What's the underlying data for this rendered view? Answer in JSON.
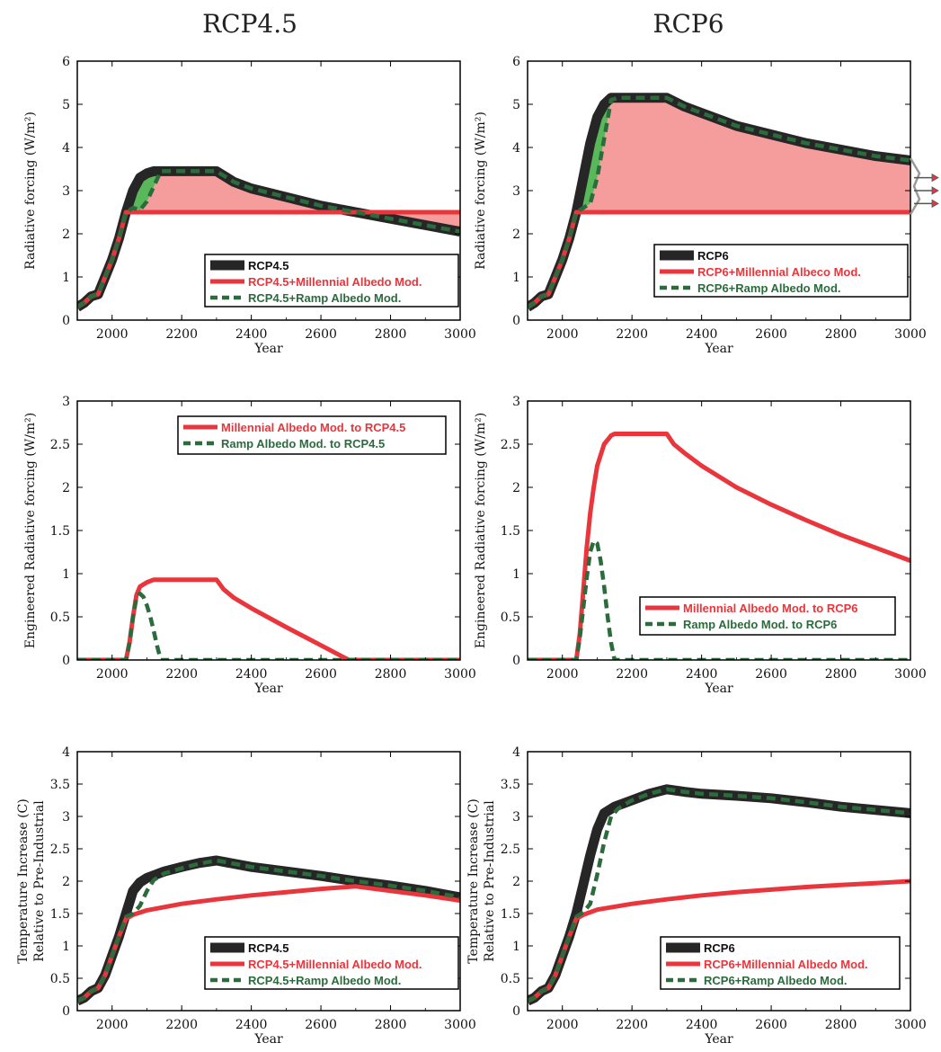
{
  "column_titles": [
    "RCP4.5",
    "RCP6"
  ],
  "colors": {
    "black": "#262626",
    "red": "#e8363c",
    "green": "#2b6b3c",
    "fill_red": "#f59d9d",
    "fill_green": "#58b85a"
  },
  "chart_data": [
    {
      "type": "line",
      "xlabel": "Year",
      "ylabel": "Radiative forcing (W/m²)",
      "xlim": [
        1900,
        3000
      ],
      "ylim": [
        0,
        6
      ],
      "xticks": [
        "2000",
        "2200",
        "2400",
        "2600",
        "2800",
        "3000"
      ],
      "yticks": [
        "0",
        "1",
        "2",
        "3",
        "4",
        "5",
        "6"
      ],
      "legend_placement": "bottom-right",
      "series": [
        {
          "name": "RCP4.5",
          "color": "black",
          "x": [
            1900,
            1920,
            1940,
            1960,
            1980,
            2000,
            2020,
            2040,
            2060,
            2080,
            2100,
            2120,
            2140,
            2160,
            2200,
            2250,
            2300,
            2350,
            2400,
            2500,
            2600,
            2700,
            2800,
            2900,
            3000
          ],
          "y": [
            0.3,
            0.4,
            0.55,
            0.6,
            1.0,
            1.4,
            1.9,
            2.5,
            3.0,
            3.3,
            3.4,
            3.45,
            3.45,
            3.45,
            3.45,
            3.45,
            3.45,
            3.2,
            3.05,
            2.85,
            2.65,
            2.5,
            2.35,
            2.2,
            2.05
          ]
        },
        {
          "name": "RCP4.5+Millennial Albedo Mod.",
          "color": "red",
          "x": [
            1900,
            1920,
            1940,
            1960,
            1980,
            2000,
            2020,
            2040,
            2050,
            2200,
            2400,
            2600,
            2800,
            3000
          ],
          "y": [
            0.3,
            0.4,
            0.55,
            0.6,
            1.0,
            1.4,
            1.9,
            2.5,
            2.5,
            2.5,
            2.5,
            2.5,
            2.5,
            2.5
          ]
        },
        {
          "name": "RCP4.5+Ramp Albedo Mod.",
          "color": "green",
          "x": [
            1900,
            1920,
            1940,
            1960,
            1980,
            2000,
            2020,
            2040,
            2060,
            2080,
            2100,
            2120,
            2140,
            2160,
            2200,
            2250,
            2300,
            2350,
            2400,
            2500,
            2600,
            2700,
            2800,
            2900,
            3000
          ],
          "y": [
            0.3,
            0.4,
            0.55,
            0.6,
            1.0,
            1.4,
            1.9,
            2.5,
            2.6,
            2.55,
            2.75,
            3.1,
            3.45,
            3.45,
            3.45,
            3.45,
            3.45,
            3.2,
            3.05,
            2.85,
            2.65,
            2.5,
            2.35,
            2.2,
            2.05
          ]
        }
      ]
    },
    {
      "type": "line",
      "xlabel": "Year",
      "ylabel": "Radiative forcing (W/m²)",
      "xlim": [
        1900,
        3000
      ],
      "ylim": [
        0,
        6
      ],
      "xticks": [
        "2000",
        "2200",
        "2400",
        "2600",
        "2800",
        "3000"
      ],
      "yticks": [
        "0",
        "1",
        "2",
        "3",
        "4",
        "5",
        "6"
      ],
      "legend_placement": "bottom-right",
      "series": [
        {
          "name": "RCP6",
          "color": "black",
          "x": [
            1900,
            1920,
            1940,
            1960,
            1980,
            2000,
            2020,
            2040,
            2060,
            2080,
            2100,
            2120,
            2140,
            2160,
            2200,
            2250,
            2300,
            2350,
            2400,
            2500,
            2600,
            2700,
            2800,
            2900,
            3000
          ],
          "y": [
            0.3,
            0.4,
            0.55,
            0.6,
            1.0,
            1.4,
            1.9,
            2.5,
            3.3,
            4.1,
            4.7,
            5.0,
            5.15,
            5.15,
            5.15,
            5.15,
            5.15,
            4.95,
            4.8,
            4.5,
            4.3,
            4.1,
            3.95,
            3.8,
            3.7
          ]
        },
        {
          "name": "RCP6+Millennial Albeco Mod.",
          "color": "red",
          "x": [
            1900,
            1920,
            1940,
            1960,
            1980,
            2000,
            2020,
            2040,
            2050,
            2200,
            2400,
            2600,
            2800,
            3000
          ],
          "y": [
            0.3,
            0.4,
            0.55,
            0.6,
            1.0,
            1.4,
            1.9,
            2.5,
            2.5,
            2.5,
            2.5,
            2.5,
            2.5,
            2.5
          ]
        },
        {
          "name": "RCP6+Ramp Albedo Mod.",
          "color": "green",
          "x": [
            1900,
            1920,
            1940,
            1960,
            1980,
            2000,
            2020,
            2040,
            2060,
            2080,
            2100,
            2120,
            2140,
            2160,
            2200,
            2250,
            2300,
            2350,
            2400,
            2500,
            2600,
            2700,
            2800,
            2900,
            3000
          ],
          "y": [
            0.3,
            0.4,
            0.55,
            0.6,
            1.0,
            1.4,
            1.9,
            2.5,
            2.6,
            2.7,
            3.3,
            4.2,
            5.1,
            5.15,
            5.15,
            5.15,
            5.15,
            4.95,
            4.8,
            4.5,
            4.3,
            4.1,
            3.95,
            3.8,
            3.7
          ]
        }
      ]
    },
    {
      "type": "line",
      "xlabel": "Year",
      "ylabel": "Engineered Radiative forcing (W/m²)",
      "xlim": [
        1900,
        3000
      ],
      "ylim": [
        0,
        3
      ],
      "xticks": [
        "2000",
        "2200",
        "2400",
        "2600",
        "2800",
        "3000"
      ],
      "yticks": [
        "0",
        "0.5",
        "1",
        "1.5",
        "2",
        "2.5",
        "3"
      ],
      "legend_placement": "top-right",
      "series": [
        {
          "name": "Millennial Albedo Mod. to RCP4.5",
          "color": "red",
          "x": [
            1900,
            2040,
            2050,
            2060,
            2070,
            2080,
            2100,
            2120,
            2140,
            2200,
            2250,
            2300,
            2320,
            2350,
            2400,
            2500,
            2600,
            2680,
            2700,
            3000
          ],
          "y": [
            0,
            0,
            0.2,
            0.5,
            0.75,
            0.85,
            0.9,
            0.93,
            0.93,
            0.93,
            0.93,
            0.93,
            0.82,
            0.72,
            0.6,
            0.38,
            0.17,
            0,
            0,
            0
          ]
        },
        {
          "name": "Ramp Albedo Mod. to RCP4.5",
          "color": "green",
          "x": [
            1900,
            2040,
            2050,
            2060,
            2070,
            2080,
            2090,
            2100,
            2110,
            2120,
            2130,
            2140,
            2160,
            2400,
            2600,
            2800,
            3000
          ],
          "y": [
            0,
            0,
            0.2,
            0.5,
            0.72,
            0.77,
            0.73,
            0.63,
            0.5,
            0.33,
            0.15,
            0,
            0,
            0,
            0,
            0,
            0
          ]
        }
      ]
    },
    {
      "type": "line",
      "xlabel": "Year",
      "ylabel": "Engineered Radiative forcing (W/m²)",
      "xlim": [
        1900,
        3000
      ],
      "ylim": [
        0,
        3
      ],
      "xticks": [
        "2000",
        "2200",
        "2400",
        "2600",
        "2800",
        "3000"
      ],
      "yticks": [
        "0",
        "0.5",
        "1",
        "1.5",
        "2",
        "2.5",
        "3"
      ],
      "legend_placement": "bottom-right",
      "series": [
        {
          "name": "Millennial Albedo Mod. to RCP6",
          "color": "red",
          "x": [
            1900,
            2040,
            2050,
            2060,
            2070,
            2080,
            2090,
            2100,
            2120,
            2140,
            2150,
            2200,
            2250,
            2300,
            2320,
            2350,
            2400,
            2500,
            2600,
            2700,
            2800,
            2900,
            3000
          ],
          "y": [
            0,
            0,
            0.3,
            0.8,
            1.3,
            1.7,
            2.0,
            2.25,
            2.5,
            2.6,
            2.62,
            2.62,
            2.62,
            2.62,
            2.5,
            2.4,
            2.25,
            2.0,
            1.8,
            1.62,
            1.45,
            1.3,
            1.15
          ]
        },
        {
          "name": "Ramp Albedo Mod. to RCP6",
          "color": "green",
          "x": [
            1900,
            2040,
            2050,
            2060,
            2070,
            2080,
            2090,
            2100,
            2110,
            2120,
            2130,
            2140,
            2150,
            2160,
            2400,
            2600,
            2800,
            3000
          ],
          "y": [
            0,
            0,
            0.25,
            0.6,
            0.95,
            1.25,
            1.38,
            1.35,
            1.15,
            0.85,
            0.5,
            0.2,
            0,
            0,
            0,
            0,
            0,
            0
          ]
        }
      ]
    },
    {
      "type": "line",
      "xlabel": "Year",
      "ylabel": "Temperature Increase (C) Relative to Pre-Industrial",
      "xlim": [
        1900,
        3000
      ],
      "ylim": [
        0,
        4
      ],
      "xticks": [
        "2000",
        "2200",
        "2400",
        "2600",
        "2800",
        "3000"
      ],
      "yticks": [
        "0",
        "0.5",
        "1",
        "1.5",
        "2",
        "2.5",
        "3",
        "3.5",
        "4"
      ],
      "legend_placement": "bottom-right",
      "series": [
        {
          "name": "RCP4.5",
          "color": "black",
          "x": [
            1900,
            1920,
            1940,
            1960,
            1980,
            2000,
            2020,
            2040,
            2060,
            2080,
            2100,
            2150,
            2200,
            2250,
            2300,
            2400,
            2500,
            2600,
            2700,
            2800,
            2900,
            3000
          ],
          "y": [
            0.15,
            0.2,
            0.3,
            0.35,
            0.55,
            0.85,
            1.15,
            1.5,
            1.85,
            1.98,
            2.05,
            2.15,
            2.22,
            2.28,
            2.32,
            2.22,
            2.15,
            2.08,
            2.0,
            1.93,
            1.85,
            1.75
          ]
        },
        {
          "name": "RCP4.5+Millennial Albedo Mod.",
          "color": "red",
          "x": [
            1900,
            1920,
            1940,
            1960,
            1980,
            2000,
            2020,
            2040,
            2060,
            2100,
            2200,
            2300,
            2400,
            2500,
            2600,
            2700,
            2800,
            2900,
            3000
          ],
          "y": [
            0.15,
            0.2,
            0.3,
            0.35,
            0.55,
            0.85,
            1.15,
            1.42,
            1.48,
            1.55,
            1.65,
            1.72,
            1.78,
            1.83,
            1.88,
            1.92,
            1.85,
            1.78,
            1.7
          ]
        },
        {
          "name": "RCP4.5+Ramp Albedo Mod.",
          "color": "green",
          "x": [
            1900,
            1920,
            1940,
            1960,
            1980,
            2000,
            2020,
            2040,
            2060,
            2080,
            2100,
            2120,
            2150,
            2200,
            2250,
            2300,
            2400,
            2500,
            2600,
            2700,
            2800,
            2900,
            3000
          ],
          "y": [
            0.15,
            0.2,
            0.3,
            0.35,
            0.55,
            0.85,
            1.15,
            1.45,
            1.5,
            1.62,
            1.85,
            2.02,
            2.12,
            2.2,
            2.27,
            2.32,
            2.22,
            2.15,
            2.08,
            2.0,
            1.93,
            1.85,
            1.75
          ]
        }
      ]
    },
    {
      "type": "line",
      "xlabel": "Year",
      "ylabel": "Temperature Increase (C) Relative to Pre-Industrial",
      "xlim": [
        1900,
        3000
      ],
      "ylim": [
        0,
        4
      ],
      "xticks": [
        "2000",
        "2200",
        "2400",
        "2600",
        "2800",
        "3000"
      ],
      "yticks": [
        "0",
        "0.5",
        "1",
        "1.5",
        "2",
        "2.5",
        "3",
        "3.5",
        "4"
      ],
      "legend_placement": "bottom-right",
      "series": [
        {
          "name": "RCP6",
          "color": "black",
          "x": [
            1900,
            1920,
            1940,
            1960,
            1980,
            2000,
            2020,
            2040,
            2060,
            2080,
            2100,
            2120,
            2150,
            2200,
            2250,
            2300,
            2350,
            2400,
            2500,
            2600,
            2700,
            2800,
            2900,
            3000
          ],
          "y": [
            0.15,
            0.2,
            0.3,
            0.35,
            0.55,
            0.85,
            1.15,
            1.5,
            1.95,
            2.4,
            2.8,
            3.05,
            3.15,
            3.25,
            3.35,
            3.42,
            3.38,
            3.35,
            3.32,
            3.28,
            3.22,
            3.15,
            3.1,
            3.05
          ]
        },
        {
          "name": "RCP6+Millennial Albedo Mod.",
          "color": "red",
          "x": [
            1900,
            1920,
            1940,
            1960,
            1980,
            2000,
            2020,
            2040,
            2060,
            2100,
            2200,
            2300,
            2400,
            2500,
            2600,
            2700,
            2800,
            2900,
            3000
          ],
          "y": [
            0.15,
            0.2,
            0.3,
            0.35,
            0.55,
            0.85,
            1.15,
            1.42,
            1.48,
            1.56,
            1.65,
            1.72,
            1.78,
            1.83,
            1.87,
            1.91,
            1.94,
            1.97,
            2.0
          ]
        },
        {
          "name": "RCP6+Ramp Albedo Mod.",
          "color": "green",
          "x": [
            1900,
            1920,
            1940,
            1960,
            1980,
            2000,
            2020,
            2040,
            2060,
            2080,
            2100,
            2120,
            2140,
            2160,
            2200,
            2250,
            2300,
            2350,
            2400,
            2500,
            2600,
            2700,
            2800,
            2900,
            3000
          ],
          "y": [
            0.15,
            0.2,
            0.3,
            0.35,
            0.55,
            0.85,
            1.15,
            1.45,
            1.52,
            1.65,
            2.1,
            2.6,
            3.0,
            3.12,
            3.25,
            3.35,
            3.42,
            3.38,
            3.35,
            3.32,
            3.28,
            3.22,
            3.15,
            3.1,
            3.05
          ]
        }
      ]
    }
  ]
}
